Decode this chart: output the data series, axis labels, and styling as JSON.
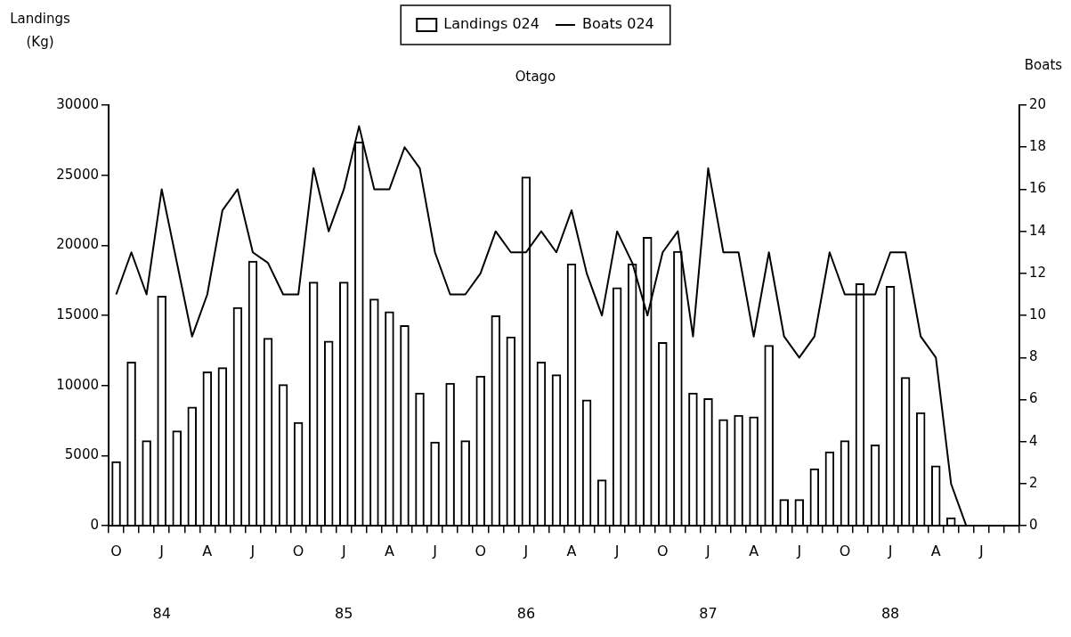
{
  "chart_data": {
    "type": "bar",
    "title": "Otago",
    "ylabel": "Landings\n(Kg)",
    "y2label": "Boats",
    "categories": [
      "O",
      null,
      null,
      "J\n84",
      null,
      null,
      "A",
      null,
      null,
      "J",
      null,
      null,
      "O",
      null,
      null,
      "J\n85",
      null,
      null,
      "A",
      null,
      null,
      "J",
      null,
      null,
      "O",
      null,
      null,
      "J\n86",
      null,
      null,
      "A",
      null,
      null,
      "J",
      null,
      null,
      "O",
      null,
      null,
      "J\n87",
      null,
      null,
      "A",
      null,
      null,
      "J",
      null,
      null,
      "O",
      null,
      null,
      "J\n88",
      null,
      null,
      "A",
      null,
      null,
      "J",
      null,
      null
    ],
    "series": [
      {
        "name": "Landings 024",
        "color": "#000000",
        "values": [
          4600,
          11700,
          6100,
          16400,
          6800,
          8500,
          11000,
          11300,
          15600,
          18900,
          13400,
          10100,
          7400,
          17400,
          13200,
          17400,
          27400,
          16200,
          15300,
          14300,
          9500,
          6000,
          10200,
          6100,
          10700,
          15000,
          13500,
          24900,
          11700,
          10800,
          18700,
          9000,
          3300,
          17000,
          18700,
          20600,
          13100,
          19600,
          9500,
          9100,
          7600,
          7900,
          7800,
          12900,
          1900,
          1900,
          4100,
          5300,
          6100,
          17300,
          5800,
          17100,
          10600,
          8100,
          4300,
          600,
          null,
          null,
          null,
          null
        ]
      },
      {
        "name": "Boats 024",
        "type": "line",
        "axis": "y2",
        "color": "#000000",
        "values": [
          11,
          13,
          11,
          16,
          12.5,
          9,
          11,
          15,
          16,
          13,
          12.5,
          11,
          11,
          17,
          14,
          16,
          19,
          16,
          16,
          18,
          17,
          13,
          11,
          11,
          12,
          14,
          13,
          13,
          14,
          13,
          15,
          12,
          10,
          14,
          12.5,
          10,
          13,
          14,
          9,
          17,
          13,
          13,
          9,
          13,
          9,
          8,
          9,
          13,
          11,
          11,
          11,
          13,
          13,
          9,
          8,
          2,
          0,
          null,
          null,
          null
        ]
      }
    ],
    "ylim": [
      0,
      30000
    ],
    "yticks": [
      0,
      5000,
      10000,
      15000,
      20000,
      25000,
      30000
    ],
    "y2lim": [
      0,
      20
    ],
    "y2ticks": [
      0,
      2,
      4,
      6,
      8,
      10,
      12,
      14,
      16,
      18,
      20
    ],
    "legend": "top",
    "grid": false
  }
}
